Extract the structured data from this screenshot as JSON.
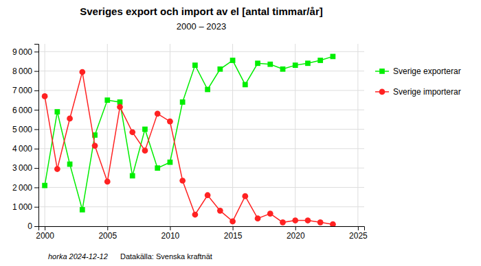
{
  "chart_data": {
    "type": "line",
    "title": "Sveriges export och import av el [antal timmar/år]",
    "subtitle": "2000 – 2023",
    "x": [
      2000,
      2001,
      2002,
      2003,
      2004,
      2005,
      2006,
      2007,
      2008,
      2009,
      2010,
      2011,
      2012,
      2013,
      2014,
      2015,
      2016,
      2017,
      2018,
      2019,
      2020,
      2021,
      2022,
      2023
    ],
    "series": [
      {
        "name": "Sverige exporterar",
        "color": "#00ee00",
        "marker": "square",
        "values": [
          2100,
          5900,
          3200,
          850,
          4700,
          6500,
          6400,
          2600,
          5000,
          3000,
          3300,
          6400,
          8300,
          7050,
          8100,
          8550,
          7300,
          8400,
          8350,
          8100,
          8300,
          8400,
          8550,
          8750
        ]
      },
      {
        "name": "Sverige importerar",
        "color": "#ff2222",
        "marker": "circle",
        "values": [
          6700,
          2950,
          5550,
          7950,
          4150,
          2300,
          6150,
          4850,
          3900,
          5800,
          5400,
          2350,
          600,
          1600,
          800,
          250,
          1550,
          400,
          650,
          200,
          300,
          300,
          200,
          100
        ]
      }
    ],
    "xlim": [
      1999.5,
      2025.5
    ],
    "xticks": [
      2000,
      2005,
      2010,
      2015,
      2020,
      2025
    ],
    "ylim": [
      0,
      9400
    ],
    "yticks": [
      0,
      {
        "value": 1000,
        "label": "1 000"
      },
      {
        "value": 2000,
        "label": "2 000"
      },
      {
        "value": 3000,
        "label": "3 000"
      },
      {
        "value": 4000,
        "label": "4 000"
      },
      {
        "value": 5000,
        "label": "5 000"
      },
      {
        "value": 6000,
        "label": "6 000"
      },
      {
        "value": 7000,
        "label": "7 000"
      },
      {
        "value": 8000,
        "label": "8 000"
      },
      {
        "value": 9000,
        "label": "9 000"
      }
    ],
    "grid": true,
    "legend": "right",
    "annotations": [
      "horka 2024-12-12",
      "Datakälla: Svenska kraftnät"
    ]
  }
}
